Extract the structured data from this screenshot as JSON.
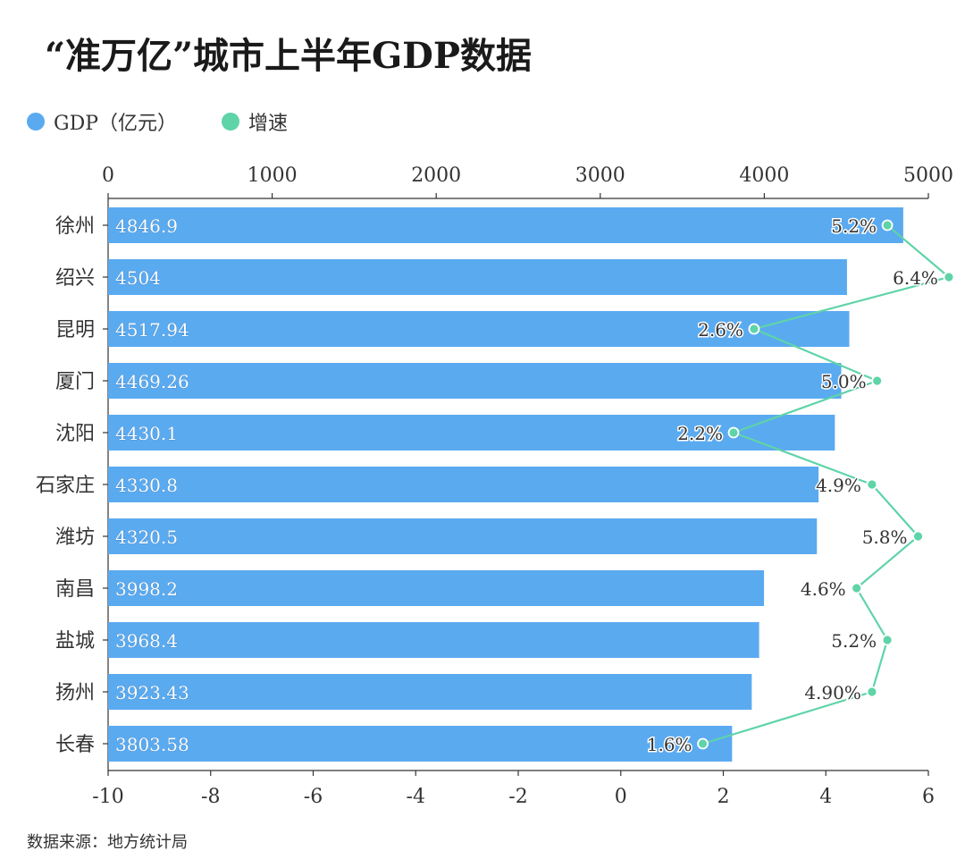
{
  "title": "“准万亿”城市上半年GDP数据",
  "legend": [
    {
      "label": "GDP（亿元）",
      "color": "#5aaaf0"
    },
    {
      "label": "增速",
      "color": "#5fd4a8"
    }
  ],
  "source": "数据来源：地方统计局",
  "chart_data": {
    "type": "bar",
    "orientation": "horizontal",
    "categories": [
      "徐州",
      "绍兴",
      "昆明",
      "厦门",
      "沈阳",
      "石家庄",
      "潍坊",
      "南昌",
      "盐城",
      "扬州",
      "长春"
    ],
    "series": [
      {
        "name": "GDP（亿元）",
        "axis": "top",
        "values": [
          4846.9,
          4504,
          4517.94,
          4469.26,
          4430.1,
          4330.8,
          4320.5,
          3998.2,
          3968.4,
          3923.43,
          3803.58
        ],
        "labels": [
          "4846.9",
          "4504",
          "4517.94",
          "4469.26",
          "4430.1",
          "4330.8",
          "4320.5",
          "3998.2",
          "3968.4",
          "3923.43",
          "3803.58"
        ],
        "color": "#5aaaf0"
      },
      {
        "name": "增速",
        "type": "line",
        "axis": "bottom",
        "values": [
          5.2,
          6.4,
          2.6,
          5.0,
          2.2,
          4.9,
          5.8,
          4.6,
          5.2,
          4.9,
          1.6
        ],
        "labels": [
          "5.2%",
          "6.4%",
          "2.6%",
          "5.0%",
          "2.2%",
          "4.9%",
          "5.8%",
          "4.6%",
          "5.2%",
          "4.90%",
          "1.6%"
        ],
        "color": "#5fd4a8"
      }
    ],
    "top_axis": {
      "range": [
        0,
        5000
      ],
      "ticks": [
        "0",
        "1000",
        "2000",
        "3000",
        "4000",
        "5000"
      ]
    },
    "bottom_axis": {
      "range": [
        -10,
        6
      ],
      "ticks": [
        "-10",
        "-8",
        "-6",
        "-4",
        "-2",
        "0",
        "2",
        "4",
        "6"
      ]
    },
    "grid": false
  }
}
